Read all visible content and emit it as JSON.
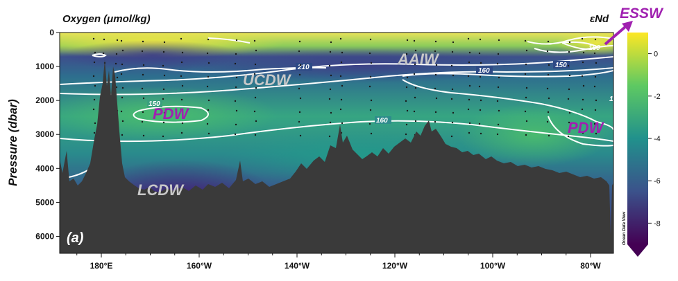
{
  "chart_data": {
    "type": "heatmap",
    "title": "Oxygen (μmol/kg)",
    "colorbar_title": "εNd",
    "ylabel": "Pressure (dbar)",
    "panel_label": "(a)",
    "watermark": "Ocean Data View",
    "x_ticks": [
      "180°E",
      "160°W",
      "140°W",
      "120°W",
      "100°W",
      "80°W"
    ],
    "y_ticks": [
      "0",
      "1000",
      "2000",
      "3000",
      "4000",
      "5000",
      "6000"
    ],
    "ylim": [
      0,
      6500
    ],
    "colorbar_ticks": [
      "0",
      "-2",
      "-4",
      "-6",
      "-8"
    ],
    "colorbar_range": [
      -9,
      1
    ],
    "colormap": [
      "#440154",
      "#3b528b",
      "#21918c",
      "#5ec962",
      "#fde725"
    ],
    "contour_labels": [
      "210",
      "160",
      "150",
      "150",
      "160",
      "160",
      "1"
    ],
    "water_masses": [
      {
        "name": "AAIW",
        "color": "#c8c8c8"
      },
      {
        "name": "UCDW",
        "color": "#c8c8c8"
      },
      {
        "name": "PDW",
        "color": "#a020b0"
      },
      {
        "name": "PDW",
        "color": "#a020b0"
      },
      {
        "name": "LCDW",
        "color": "#c8c8c8"
      }
    ],
    "arrow_label": {
      "text": "ESSW",
      "color": "#a020b0"
    },
    "seafloor_color": "#3a3a3a",
    "contour_color": "#ffffff"
  }
}
